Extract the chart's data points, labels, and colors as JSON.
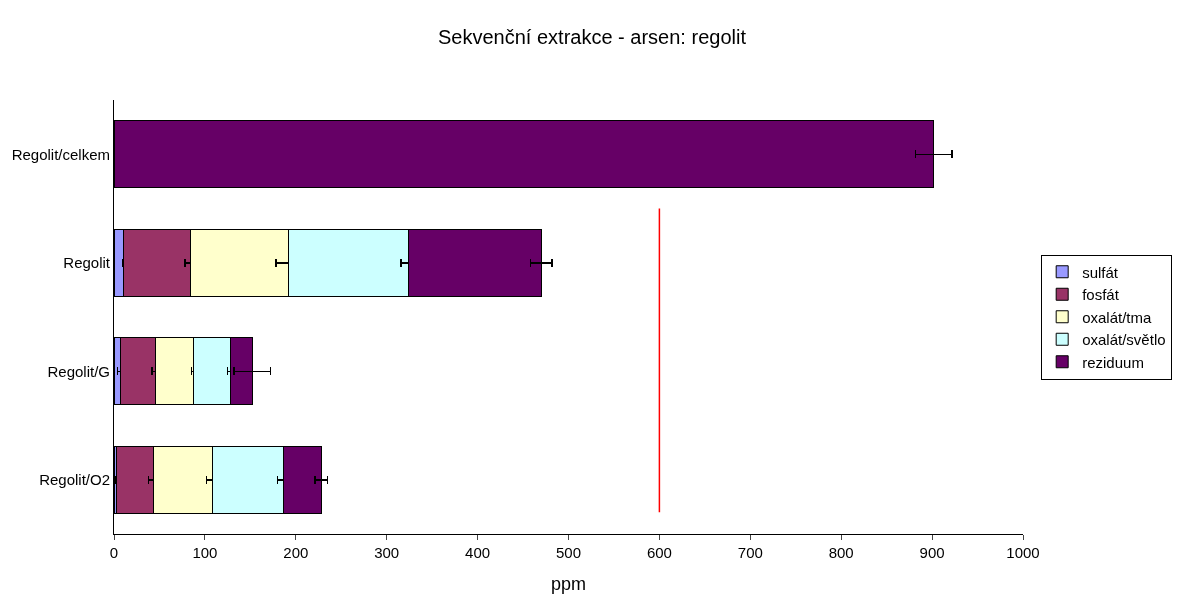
{
  "chart_data": {
    "type": "bar",
    "orientation": "horizontal",
    "stacked": true,
    "title": "Sekvenční extrakce - arsen: regolit",
    "xlabel": "ppm",
    "categories": [
      "Regolit/celkem",
      "Regolit",
      "Regolit/G",
      "Regolit/O2"
    ],
    "series": [
      {
        "name": "sulfát",
        "color": "#9999ff",
        "values": [
          null,
          10,
          7,
          3
        ],
        "errors": [
          null,
          null,
          3,
          1
        ]
      },
      {
        "name": "fosfát",
        "color": "#993366",
        "values": [
          null,
          74,
          39,
          40
        ],
        "errors": [
          null,
          6,
          4,
          5
        ]
      },
      {
        "name": "oxalát/tma",
        "color": "#ffffcc",
        "values": [
          null,
          108,
          41,
          65
        ],
        "errors": [
          null,
          14,
          2,
          6
        ]
      },
      {
        "name": "oxalát/světlo",
        "color": "#ccffff",
        "values": [
          null,
          132,
          41,
          78
        ],
        "errors": [
          null,
          8,
          3,
          6
        ]
      },
      {
        "name": "reziduum",
        "color": "#660066",
        "values": [
          902,
          146,
          24,
          42
        ],
        "errors": [
          20,
          12,
          20,
          7
        ]
      }
    ],
    "xlim": [
      0,
      1000
    ],
    "xticks": [
      0,
      100,
      200,
      300,
      400,
      500,
      600,
      700,
      800,
      900,
      1000
    ],
    "ref_lines": [
      {
        "axis": "x",
        "value": 600,
        "color": "#ff0000"
      }
    ],
    "grid": false,
    "legend": "right"
  }
}
